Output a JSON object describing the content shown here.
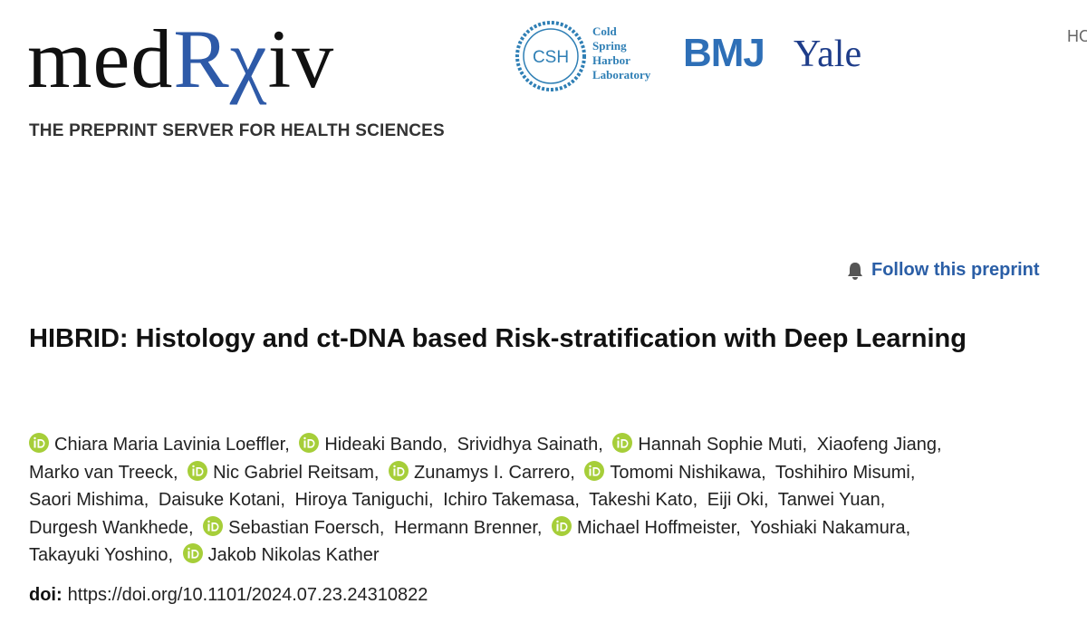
{
  "header": {
    "logo": [
      "med",
      "Rχ",
      "iv"
    ],
    "tagline": "THE PREPRINT SERVER FOR HEALTH SCIENCES",
    "partners": {
      "csh_mark": "CSH",
      "csh_name": [
        "Cold",
        "Spring",
        "Harbor",
        "Laboratory"
      ],
      "bmj": "BMJ",
      "yale": "Yale"
    },
    "nav": "HO"
  },
  "follow": "Follow this preprint",
  "article": {
    "title": "HIBRID: Histology and ct-DNA based Risk-stratification with Deep Learning",
    "authors": [
      {
        "name": "Chiara Maria Lavinia Loeffler,",
        "orcid": true
      },
      {
        "name": "Hideaki Bando,",
        "orcid": true
      },
      {
        "name": "Srividhya Sainath,",
        "orcid": false
      },
      {
        "name": "Hannah Sophie Muti,",
        "orcid": true
      },
      {
        "name": "Xiaofeng Jiang,",
        "orcid": false
      },
      {
        "name": "Marko van Treeck,",
        "orcid": false
      },
      {
        "name": "Nic Gabriel Reitsam,",
        "orcid": true
      },
      {
        "name": "Zunamys I. Carrero,",
        "orcid": true
      },
      {
        "name": "Tomomi Nishikawa,",
        "orcid": true
      },
      {
        "name": "Toshihiro Misumi,",
        "orcid": false
      },
      {
        "name": "Saori Mishima,",
        "orcid": false
      },
      {
        "name": "Daisuke Kotani,",
        "orcid": false
      },
      {
        "name": "Hiroya Taniguchi,",
        "orcid": false
      },
      {
        "name": "Ichiro Takemasa,",
        "orcid": false
      },
      {
        "name": "Takeshi Kato,",
        "orcid": false
      },
      {
        "name": "Eiji Oki,",
        "orcid": false
      },
      {
        "name": "Tanwei Yuan,",
        "orcid": false
      },
      {
        "name": "Durgesh Wankhede,",
        "orcid": false
      },
      {
        "name": "Sebastian Foersch,",
        "orcid": true
      },
      {
        "name": "Hermann Brenner,",
        "orcid": false
      },
      {
        "name": "Michael Hoffmeister,",
        "orcid": true
      },
      {
        "name": "Yoshiaki Nakamura,",
        "orcid": false
      },
      {
        "name": "Takayuki Yoshino,",
        "orcid": false
      },
      {
        "name": "Jakob Nikolas Kather",
        "orcid": true
      }
    ],
    "doi_label": "doi:",
    "doi": "https://doi.org/10.1101/2024.07.23.24310822"
  }
}
